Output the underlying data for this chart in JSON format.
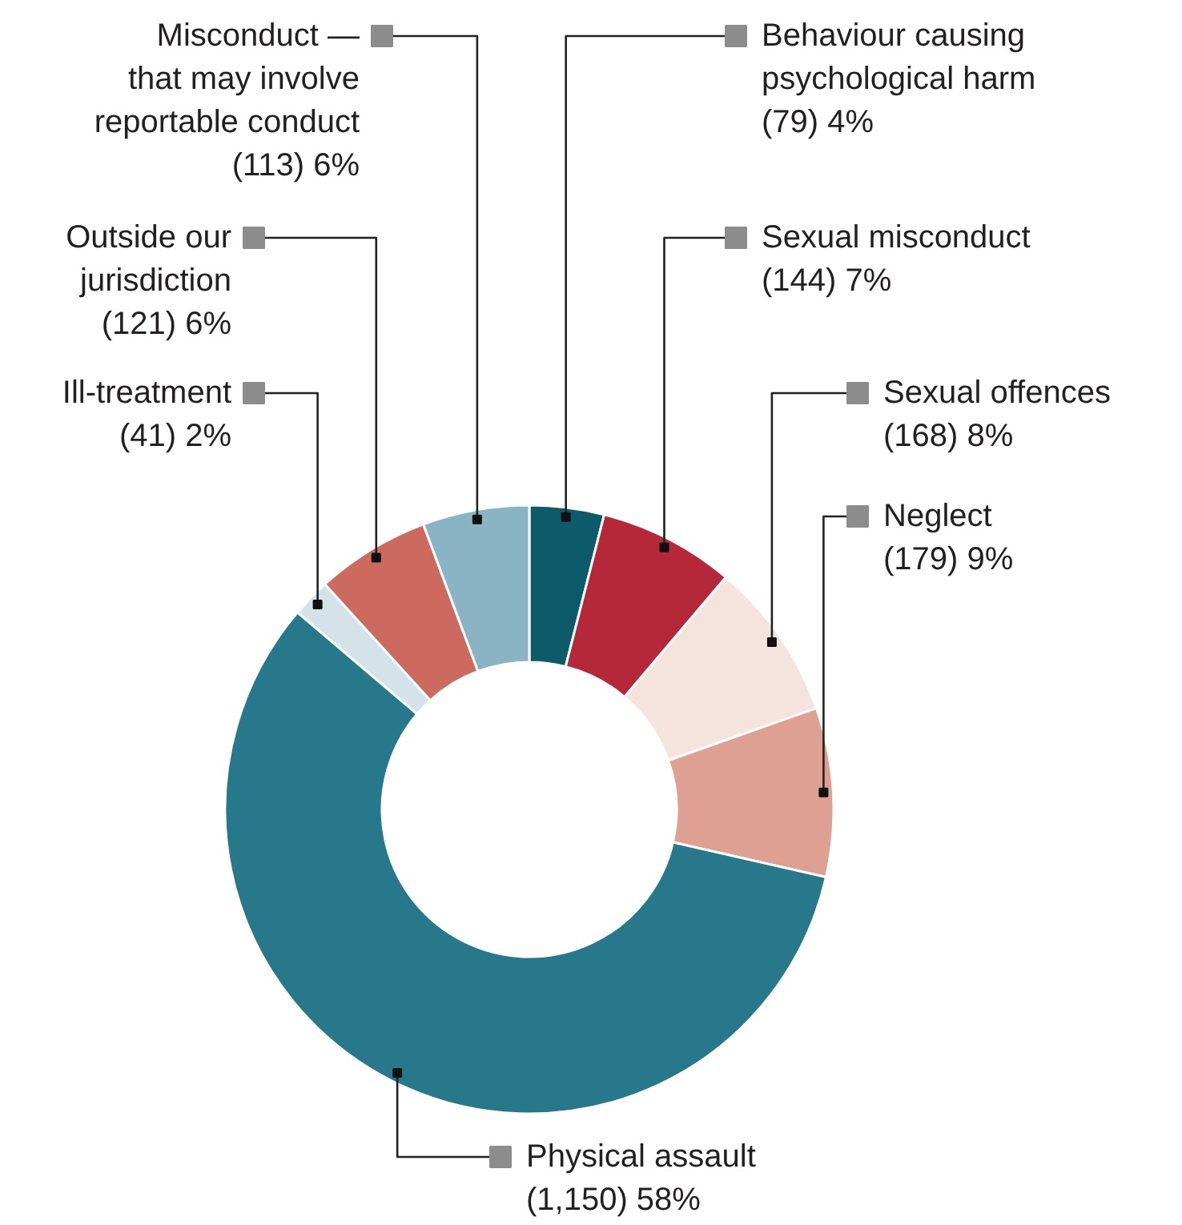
{
  "chart_data": {
    "type": "donut",
    "categories": [
      "Behaviour causing\npsychological harm",
      "Sexual misconduct",
      "Sexual offences",
      "Neglect",
      "Physical assault",
      "Ill-treatment",
      "Outside our\njurisdiction",
      "Misconduct —\nthat may involve\nreportable conduct"
    ],
    "values": [
      79,
      144,
      168,
      179,
      1150,
      41,
      121,
      113
    ],
    "value_labels": [
      "(79) 4%",
      "(144) 7%",
      "(168) 8%",
      "(179) 9%",
      "(1,150) 58%",
      "(41) 2%",
      "(121) 6%",
      "(113) 6%"
    ],
    "colors": [
      "#0d5a6a",
      "#b5283a",
      "#f5e3de",
      "#dea093",
      "#27788a",
      "#d4e3ea",
      "#cc6a60",
      "#8ab4c3"
    ],
    "legend": false
  }
}
